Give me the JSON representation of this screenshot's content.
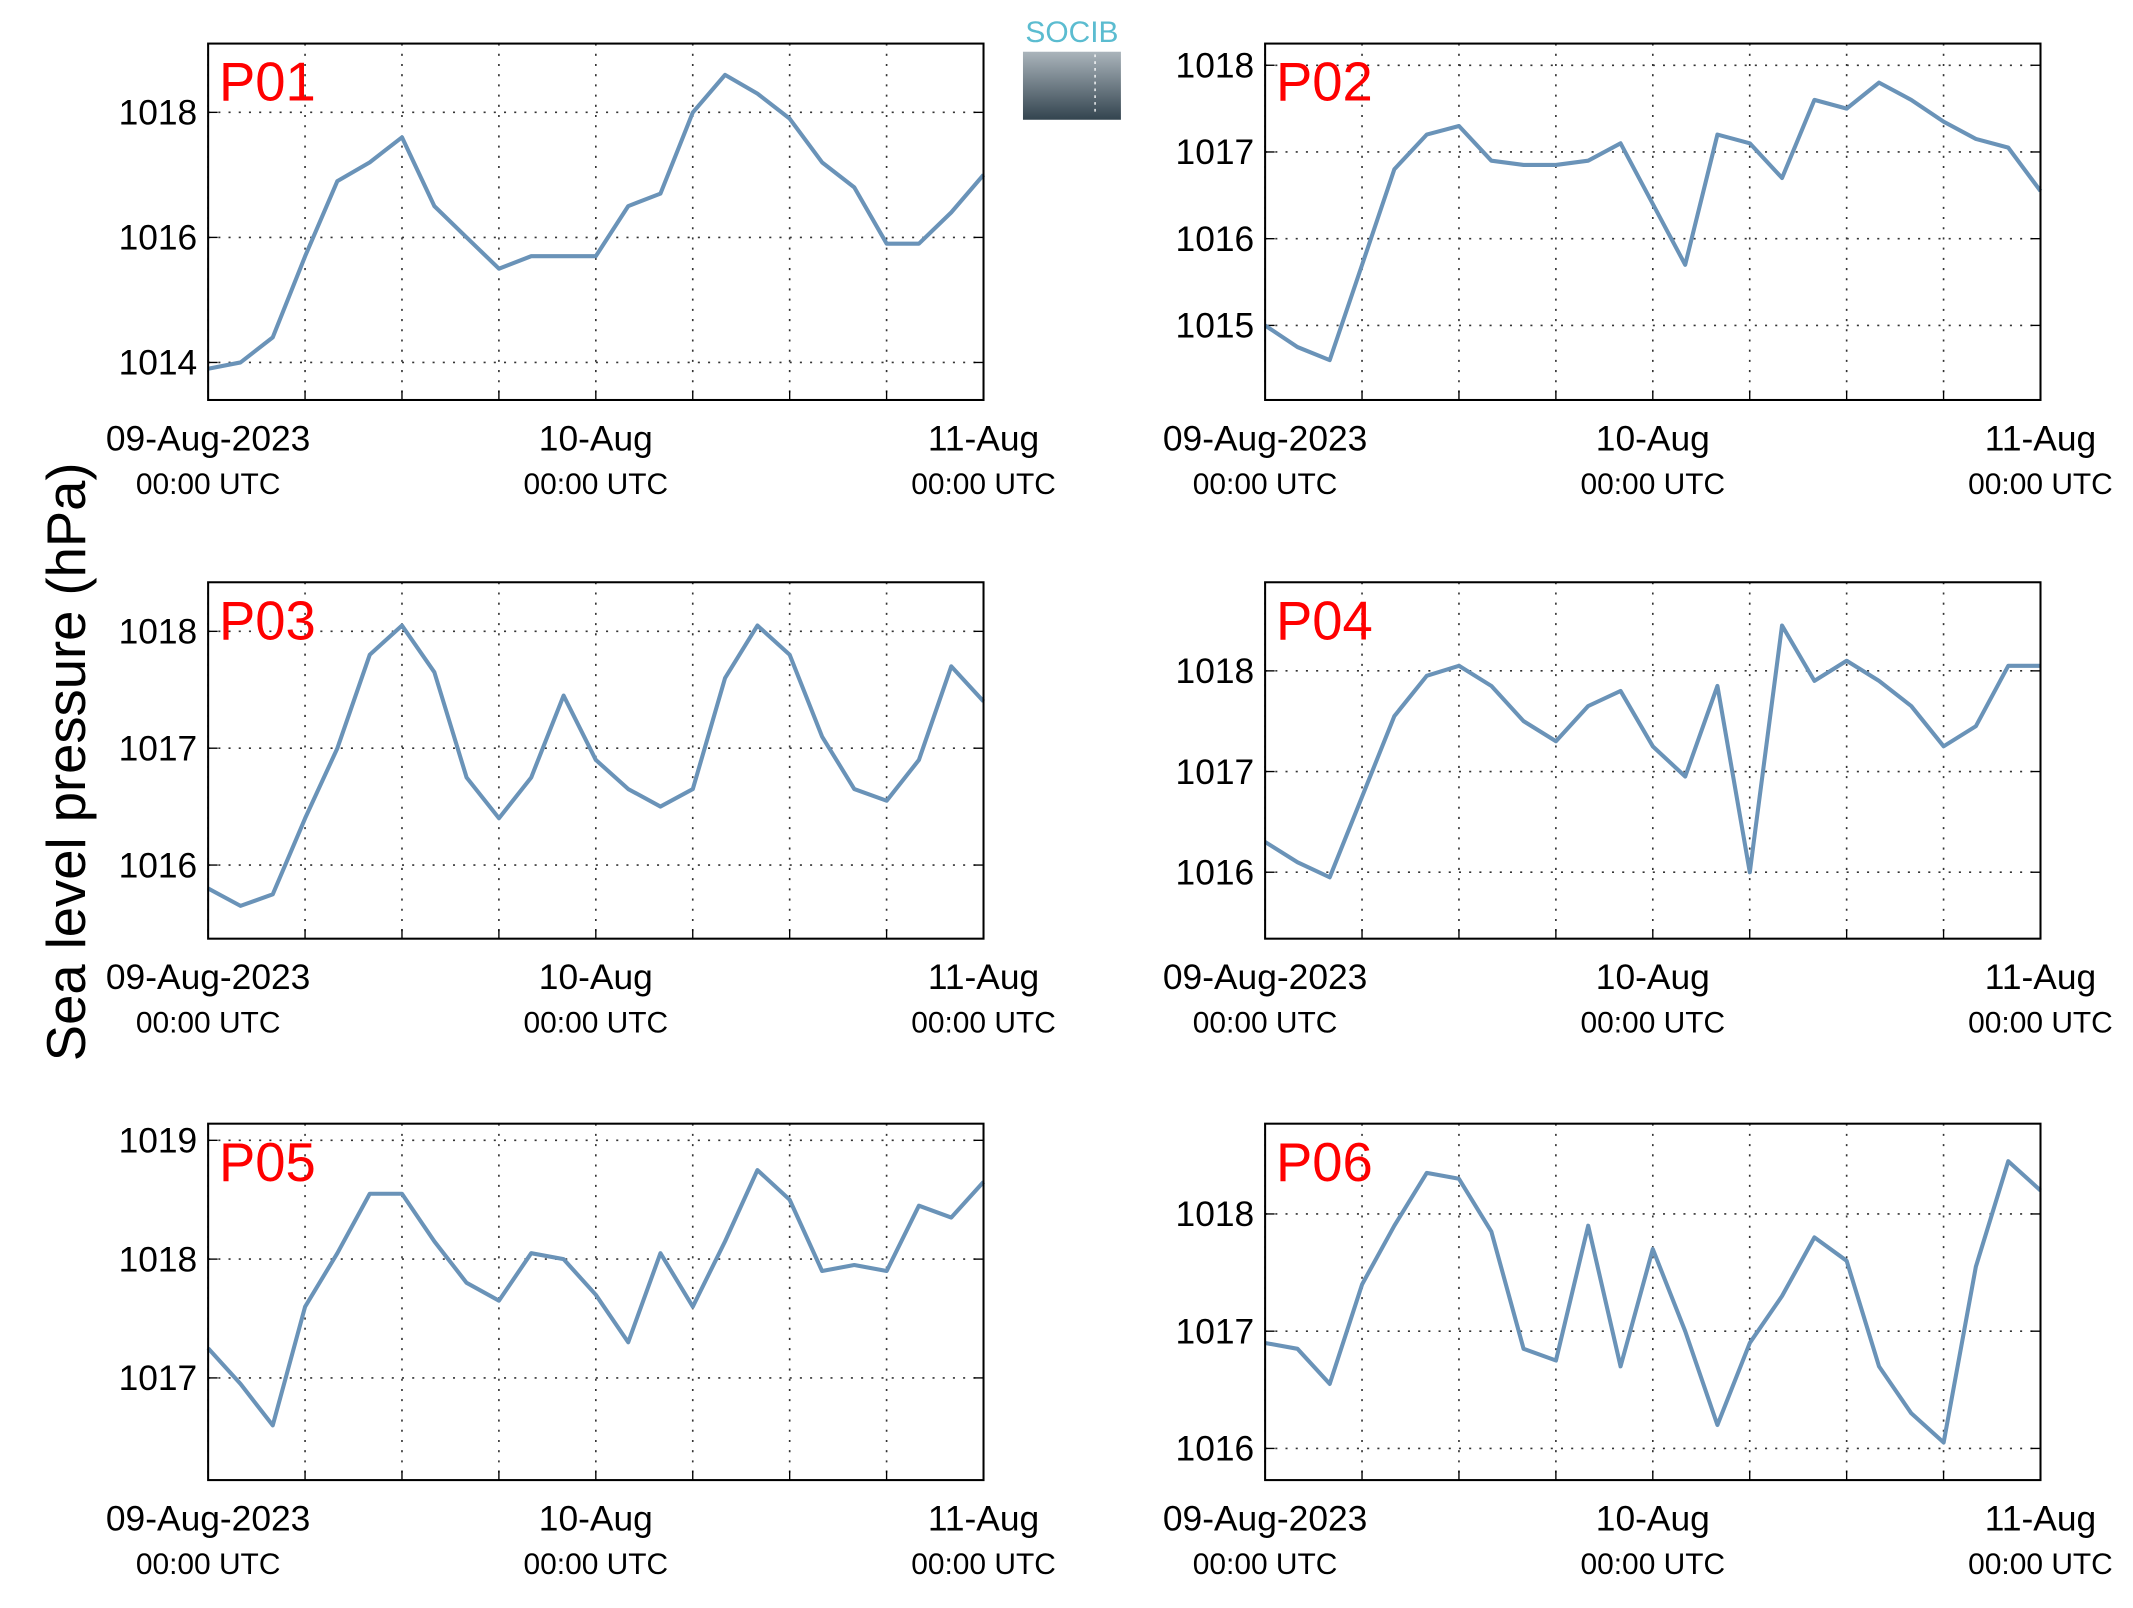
{
  "ylabel": "Sea level pressure (hPa)",
  "logo": "SOCIB",
  "chart_data": [
    {
      "type": "line",
      "name": "P01",
      "color": "#6a93b8",
      "grid": true,
      "x": [
        0,
        2,
        4,
        6,
        8,
        10,
        12,
        14,
        16,
        18,
        20,
        22,
        24,
        26,
        28,
        30,
        32,
        34,
        36,
        38,
        40,
        42,
        44,
        46,
        48
      ],
      "values": [
        1013.9,
        1014.0,
        1014.4,
        1015.7,
        1016.9,
        1017.2,
        1017.6,
        1016.5,
        1016.0,
        1015.5,
        1015.7,
        1015.7,
        1015.7,
        1016.5,
        1016.7,
        1018.0,
        1018.6,
        1018.3,
        1017.9,
        1017.2,
        1016.8,
        1015.9,
        1015.9,
        1016.4,
        1017.0
      ],
      "xlim": [
        0,
        48
      ],
      "xticks": [
        {
          "value": 0,
          "label": [
            "09-Aug-2023",
            "00:00 UTC"
          ]
        },
        {
          "value": 24,
          "label": [
            "10-Aug",
            "00:00 UTC"
          ]
        },
        {
          "value": 48,
          "label": [
            "11-Aug",
            "00:00 UTC"
          ]
        }
      ],
      "xminor": [
        6,
        12,
        18,
        30,
        36,
        42
      ],
      "ylim": [
        1013.4,
        1019.1
      ],
      "yticks": [
        1014,
        1016,
        1018
      ]
    },
    {
      "type": "line",
      "name": "P02",
      "color": "#6a93b8",
      "grid": true,
      "x": [
        0,
        2,
        4,
        6,
        8,
        10,
        12,
        14,
        16,
        18,
        20,
        22,
        24,
        26,
        28,
        30,
        32,
        34,
        36,
        38,
        40,
        42,
        44,
        46,
        48
      ],
      "values": [
        1015.0,
        1014.75,
        1014.6,
        1015.7,
        1016.8,
        1017.2,
        1017.3,
        1016.9,
        1016.85,
        1016.85,
        1016.9,
        1017.1,
        1016.4,
        1015.7,
        1017.2,
        1017.1,
        1016.7,
        1017.6,
        1017.5,
        1017.8,
        1017.6,
        1017.35,
        1017.15,
        1017.05,
        1016.55
      ],
      "xlim": [
        0,
        48
      ],
      "xticks": [
        {
          "value": 0,
          "label": [
            "09-Aug-2023",
            "00:00 UTC"
          ]
        },
        {
          "value": 24,
          "label": [
            "10-Aug",
            "00:00 UTC"
          ]
        },
        {
          "value": 48,
          "label": [
            "11-Aug",
            "00:00 UTC"
          ]
        }
      ],
      "xminor": [
        6,
        12,
        18,
        30,
        36,
        42
      ],
      "ylim": [
        1014.14,
        1018.25
      ],
      "yticks": [
        1015,
        1016,
        1017,
        1018
      ]
    },
    {
      "type": "line",
      "name": "P03",
      "color": "#6a93b8",
      "grid": true,
      "x": [
        0,
        2,
        4,
        6,
        8,
        10,
        12,
        14,
        16,
        18,
        20,
        22,
        24,
        26,
        28,
        30,
        32,
        34,
        36,
        38,
        40,
        42,
        44,
        46,
        48
      ],
      "values": [
        1015.8,
        1015.65,
        1015.75,
        1016.4,
        1017.0,
        1017.8,
        1018.05,
        1017.65,
        1016.75,
        1016.4,
        1016.75,
        1017.45,
        1016.9,
        1016.65,
        1016.5,
        1016.65,
        1017.6,
        1018.05,
        1017.8,
        1017.1,
        1016.65,
        1016.55,
        1016.9,
        1017.7,
        1017.4
      ],
      "xlim": [
        0,
        48
      ],
      "xticks": [
        {
          "value": 0,
          "label": [
            "09-Aug-2023",
            "00:00 UTC"
          ]
        },
        {
          "value": 24,
          "label": [
            "10-Aug",
            "00:00 UTC"
          ]
        },
        {
          "value": 48,
          "label": [
            "11-Aug",
            "00:00 UTC"
          ]
        }
      ],
      "xminor": [
        6,
        12,
        18,
        30,
        36,
        42
      ],
      "ylim": [
        1015.37,
        1018.42
      ],
      "yticks": [
        1016,
        1017,
        1018
      ]
    },
    {
      "type": "line",
      "name": "P04",
      "color": "#6a93b8",
      "grid": true,
      "x": [
        0,
        2,
        4,
        6,
        8,
        10,
        12,
        14,
        16,
        18,
        20,
        22,
        24,
        26,
        28,
        30,
        32,
        34,
        36,
        38,
        40,
        42,
        44,
        46,
        48
      ],
      "values": [
        1016.3,
        1016.1,
        1015.95,
        1016.75,
        1017.55,
        1017.95,
        1018.05,
        1017.85,
        1017.5,
        1017.3,
        1017.65,
        1017.8,
        1017.25,
        1016.95,
        1017.85,
        1016.0,
        1018.45,
        1017.9,
        1018.1,
        1017.9,
        1017.65,
        1017.25,
        1017.45,
        1018.05,
        1018.05
      ],
      "xlim": [
        0,
        48
      ],
      "xticks": [
        {
          "value": 0,
          "label": [
            "09-Aug-2023",
            "00:00 UTC"
          ]
        },
        {
          "value": 24,
          "label": [
            "10-Aug",
            "00:00 UTC"
          ]
        },
        {
          "value": 48,
          "label": [
            "11-Aug",
            "00:00 UTC"
          ]
        }
      ],
      "xminor": [
        6,
        12,
        18,
        30,
        36,
        42
      ],
      "ylim": [
        1015.34,
        1018.88
      ],
      "yticks": [
        1016,
        1017,
        1018
      ]
    },
    {
      "type": "line",
      "name": "P05",
      "color": "#6a93b8",
      "grid": true,
      "x": [
        0,
        2,
        4,
        6,
        8,
        10,
        12,
        14,
        16,
        18,
        20,
        22,
        24,
        26,
        28,
        30,
        32,
        34,
        36,
        38,
        40,
        42,
        44,
        46,
        48
      ],
      "values": [
        1017.25,
        1016.95,
        1016.6,
        1017.6,
        1018.05,
        1018.55,
        1018.55,
        1018.15,
        1017.8,
        1017.65,
        1018.05,
        1018.0,
        1017.7,
        1017.3,
        1018.05,
        1017.6,
        1018.15,
        1018.75,
        1018.5,
        1017.9,
        1017.95,
        1017.9,
        1018.45,
        1018.35,
        1018.65
      ],
      "xlim": [
        0,
        48
      ],
      "xticks": [
        {
          "value": 0,
          "label": [
            "09-Aug-2023",
            "00:00 UTC"
          ]
        },
        {
          "value": 24,
          "label": [
            "10-Aug",
            "00:00 UTC"
          ]
        },
        {
          "value": 48,
          "label": [
            "11-Aug",
            "00:00 UTC"
          ]
        }
      ],
      "xminor": [
        6,
        12,
        18,
        30,
        36,
        42
      ],
      "ylim": [
        1016.14,
        1019.14
      ],
      "yticks": [
        1017,
        1018,
        1019
      ]
    },
    {
      "type": "line",
      "name": "P06",
      "color": "#6a93b8",
      "grid": true,
      "x": [
        0,
        2,
        4,
        6,
        8,
        10,
        12,
        14,
        16,
        18,
        20,
        22,
        24,
        26,
        28,
        30,
        32,
        34,
        36,
        38,
        40,
        42,
        44,
        46,
        48
      ],
      "values": [
        1016.9,
        1016.85,
        1016.55,
        1017.4,
        1017.9,
        1018.35,
        1018.3,
        1017.85,
        1016.85,
        1016.75,
        1017.9,
        1016.7,
        1017.7,
        1017.0,
        1016.2,
        1016.9,
        1017.3,
        1017.8,
        1017.6,
        1016.7,
        1016.3,
        1016.05,
        1017.55,
        1018.45,
        1018.2
      ],
      "xlim": [
        0,
        48
      ],
      "xticks": [
        {
          "value": 0,
          "label": [
            "09-Aug-2023",
            "00:00 UTC"
          ]
        },
        {
          "value": 24,
          "label": [
            "10-Aug",
            "00:00 UTC"
          ]
        },
        {
          "value": 48,
          "label": [
            "11-Aug",
            "00:00 UTC"
          ]
        }
      ],
      "xminor": [
        6,
        12,
        18,
        30,
        36,
        42
      ],
      "ylim": [
        1015.73,
        1018.77
      ],
      "yticks": [
        1016,
        1017,
        1018
      ]
    }
  ]
}
